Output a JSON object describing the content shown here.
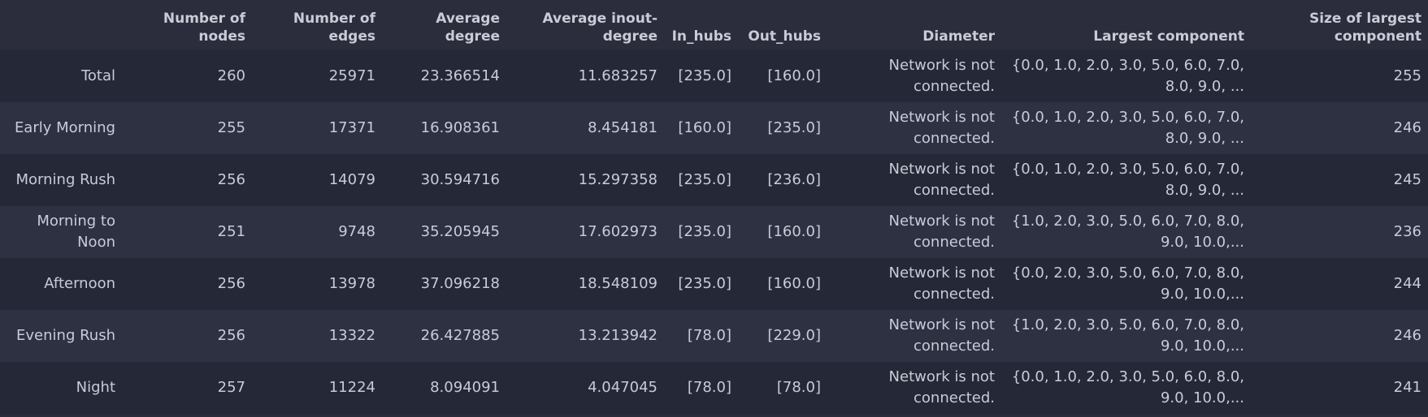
{
  "table": {
    "columns": [
      "",
      "Number of nodes",
      "Number of edges",
      "Average degree",
      "Average inout-degree",
      "In_hubs",
      "Out_hubs",
      "Diameter",
      "Largest component",
      "Size of largest component"
    ],
    "rows": [
      {
        "label": "Total",
        "nodes": "260",
        "edges": "25971",
        "avg_degree": "23.366514",
        "avg_inout": "11.683257",
        "in_hubs": "[235.0]",
        "out_hubs": "[160.0]",
        "diameter": "Network is not connected.",
        "largest_component": "{0.0, 1.0, 2.0, 3.0, 5.0, 6.0, 7.0, 8.0, 9.0, ...",
        "size": "255"
      },
      {
        "label": "Early Morning",
        "nodes": "255",
        "edges": "17371",
        "avg_degree": "16.908361",
        "avg_inout": "8.454181",
        "in_hubs": "[160.0]",
        "out_hubs": "[235.0]",
        "diameter": "Network is not connected.",
        "largest_component": "{0.0, 1.0, 2.0, 3.0, 5.0, 6.0, 7.0, 8.0, 9.0, ...",
        "size": "246"
      },
      {
        "label": "Morning Rush",
        "nodes": "256",
        "edges": "14079",
        "avg_degree": "30.594716",
        "avg_inout": "15.297358",
        "in_hubs": "[235.0]",
        "out_hubs": "[236.0]",
        "diameter": "Network is not connected.",
        "largest_component": "{0.0, 1.0, 2.0, 3.0, 5.0, 6.0, 7.0, 8.0, 9.0, ...",
        "size": "245"
      },
      {
        "label": "Morning to Noon",
        "nodes": "251",
        "edges": "9748",
        "avg_degree": "35.205945",
        "avg_inout": "17.602973",
        "in_hubs": "[235.0]",
        "out_hubs": "[160.0]",
        "diameter": "Network is not connected.",
        "largest_component": "{1.0, 2.0, 3.0, 5.0, 6.0, 7.0, 8.0, 9.0, 10.0,...",
        "size": "236"
      },
      {
        "label": "Afternoon",
        "nodes": "256",
        "edges": "13978",
        "avg_degree": "37.096218",
        "avg_inout": "18.548109",
        "in_hubs": "[235.0]",
        "out_hubs": "[160.0]",
        "diameter": "Network is not connected.",
        "largest_component": "{0.0, 2.0, 3.0, 5.0, 6.0, 7.0, 8.0, 9.0, 10.0,...",
        "size": "244"
      },
      {
        "label": "Evening Rush",
        "nodes": "256",
        "edges": "13322",
        "avg_degree": "26.427885",
        "avg_inout": "13.213942",
        "in_hubs": "[78.0]",
        "out_hubs": "[229.0]",
        "diameter": "Network is not connected.",
        "largest_component": "{1.0, 2.0, 3.0, 5.0, 6.0, 7.0, 8.0, 9.0, 10.0,...",
        "size": "246"
      },
      {
        "label": "Night",
        "nodes": "257",
        "edges": "11224",
        "avg_degree": "8.094091",
        "avg_inout": "4.047045",
        "in_hubs": "[78.0]",
        "out_hubs": "[78.0]",
        "diameter": "Network is not connected.",
        "largest_component": "{0.0, 1.0, 2.0, 3.0, 5.0, 6.0, 8.0, 9.0, 10.0,...",
        "size": "241"
      }
    ]
  }
}
